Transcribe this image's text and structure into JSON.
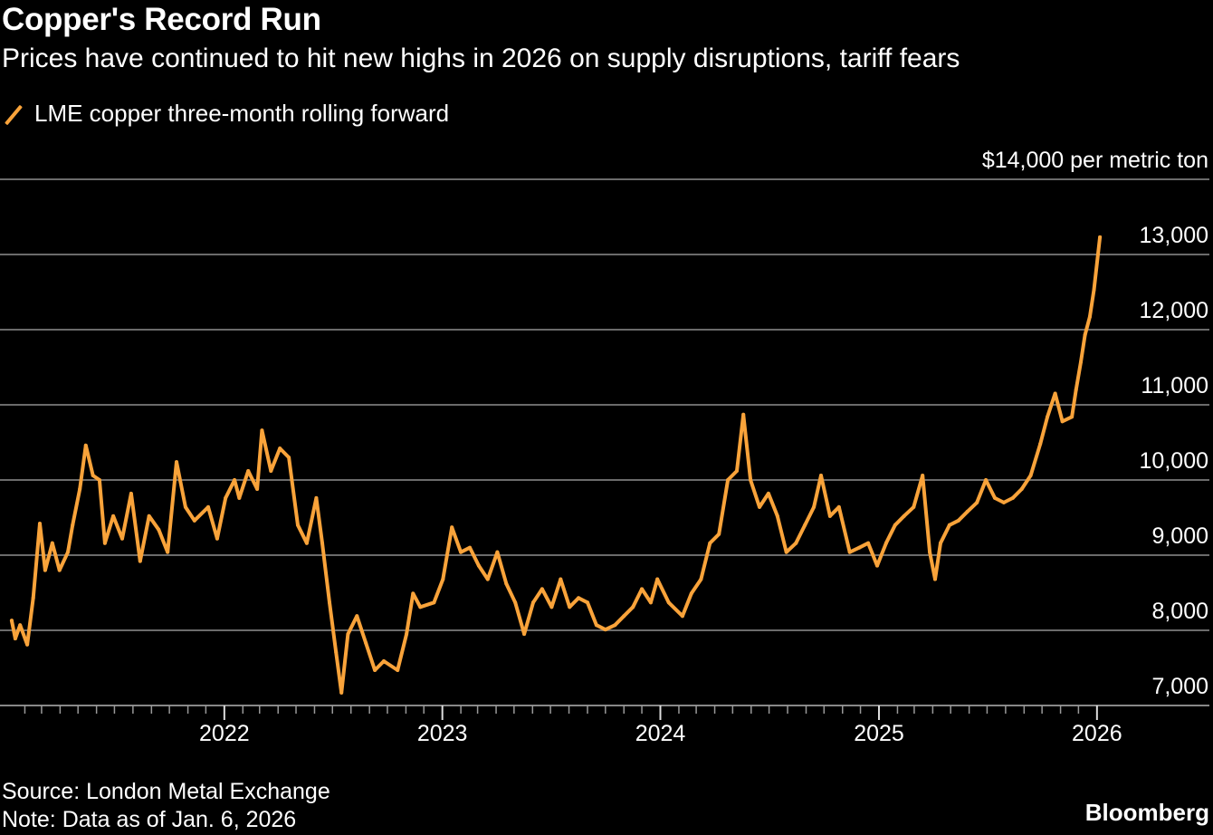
{
  "header": {
    "title": "Copper's Record Run",
    "subtitle": "Prices have continued to hit new highs in 2026 on supply disruptions, tariff fears"
  },
  "footer": {
    "source": "Source: London Metal Exchange",
    "note": "Note: Data as of Jan. 6, 2026",
    "brand": "Bloomberg"
  },
  "chart_data": {
    "type": "line",
    "title": "Copper's Record Run",
    "subtitle": "Prices have continued to hit new highs in 2026 on supply disruptions, tariff fears",
    "ylabel": "$14,000 per metric ton",
    "ylim": [
      7000,
      14000
    ],
    "yticks": [
      7000,
      8000,
      9000,
      10000,
      11000,
      12000,
      13000,
      14000
    ],
    "ytick_labels": [
      "7,000",
      "8,000",
      "9,000",
      "10,000",
      "11,000",
      "12,000",
      "13,000",
      "$14,000 per metric ton"
    ],
    "xlim": [
      "2021-01-01",
      "2026-02-15"
    ],
    "xticks": [
      "2022-01-01",
      "2023-01-01",
      "2024-01-01",
      "2025-01-01",
      "2026-01-01"
    ],
    "xtick_labels": [
      "2022",
      "2023",
      "2024",
      "2025",
      "2026"
    ],
    "minor_ticks": "monthly",
    "grid": true,
    "legend": "top-left",
    "colors": {
      "line": "#f9a33a",
      "grid": "#6b6b6b",
      "background": "#000000",
      "text": "#ffffff"
    },
    "series": [
      {
        "name": "LME copper three-month rolling forward",
        "x": [
          "2021-01-10",
          "2021-01-16",
          "2021-01-24",
          "2021-02-05",
          "2021-02-15",
          "2021-02-26",
          "2021-03-07",
          "2021-03-19",
          "2021-03-31",
          "2021-04-14",
          "2021-04-22",
          "2021-05-04",
          "2021-05-14",
          "2021-05-26",
          "2021-06-06",
          "2021-06-15",
          "2021-06-29",
          "2021-07-14",
          "2021-07-29",
          "2021-08-13",
          "2021-08-28",
          "2021-09-13",
          "2021-09-28",
          "2021-10-13",
          "2021-10-28",
          "2021-11-12",
          "2021-12-05",
          "2021-12-20",
          "2022-01-03",
          "2022-01-18",
          "2022-01-26",
          "2022-02-10",
          "2022-02-25",
          "2022-03-05",
          "2022-03-20",
          "2022-04-04",
          "2022-04-19",
          "2022-05-04",
          "2022-05-19",
          "2022-06-04",
          "2022-06-14",
          "2022-06-26",
          "2022-07-07",
          "2022-07-16",
          "2022-07-27",
          "2022-08-11",
          "2022-08-26",
          "2022-09-10",
          "2022-09-25",
          "2022-10-18",
          "2022-11-02",
          "2022-11-13",
          "2022-11-25",
          "2022-12-18",
          "2023-01-02",
          "2023-01-17",
          "2023-02-01",
          "2023-02-16",
          "2023-03-03",
          "2023-03-18",
          "2023-04-03",
          "2023-04-18",
          "2023-05-03",
          "2023-05-18",
          "2023-06-02",
          "2023-06-17",
          "2023-07-03",
          "2023-07-18",
          "2023-08-02",
          "2023-08-17",
          "2023-09-01",
          "2023-09-16",
          "2023-10-01",
          "2023-10-17",
          "2023-11-01",
          "2023-11-16",
          "2023-12-01",
          "2023-12-16",
          "2023-12-27",
          "2024-01-15",
          "2024-02-07",
          "2024-02-22",
          "2024-03-09",
          "2024-03-24",
          "2024-04-08",
          "2024-04-23",
          "2024-05-08",
          "2024-05-19",
          "2024-05-31",
          "2024-06-15",
          "2024-06-30",
          "2024-07-15",
          "2024-07-30",
          "2024-08-15",
          "2024-08-30",
          "2024-09-14",
          "2024-09-26",
          "2024-10-11",
          "2024-10-26",
          "2024-11-13",
          "2024-11-29",
          "2024-12-14",
          "2024-12-29",
          "2025-01-13",
          "2025-01-28",
          "2025-02-12",
          "2025-02-28",
          "2025-03-15",
          "2025-03-27",
          "2025-04-05",
          "2025-04-14",
          "2025-04-29",
          "2025-05-14",
          "2025-05-29",
          "2025-06-14",
          "2025-06-29",
          "2025-07-14",
          "2025-07-29",
          "2025-08-13",
          "2025-08-28",
          "2025-09-12",
          "2025-09-28",
          "2025-10-10",
          "2025-10-23",
          "2025-11-04",
          "2025-11-20",
          "2025-11-27",
          "2025-12-05",
          "2025-12-12",
          "2025-12-20",
          "2025-12-27",
          "2026-01-06"
        ],
        "values": [
          8130,
          7890,
          8070,
          7810,
          8430,
          9420,
          8800,
          9160,
          8800,
          9040,
          9400,
          9880,
          10460,
          10060,
          10000,
          9160,
          9520,
          9220,
          9820,
          8920,
          9520,
          9340,
          9040,
          10240,
          9640,
          9460,
          9640,
          9220,
          9760,
          10000,
          9760,
          10120,
          9880,
          10660,
          10120,
          10420,
          10300,
          9400,
          9160,
          9760,
          9160,
          8370,
          7710,
          7170,
          7950,
          8190,
          7830,
          7470,
          7590,
          7470,
          7950,
          8490,
          8310,
          8370,
          8680,
          9370,
          9040,
          9100,
          8860,
          8680,
          9040,
          8620,
          8370,
          7950,
          8370,
          8550,
          8310,
          8680,
          8310,
          8430,
          8370,
          8070,
          8010,
          8070,
          8190,
          8310,
          8550,
          8370,
          8680,
          8370,
          8190,
          8490,
          8680,
          9160,
          9280,
          10000,
          10120,
          10870,
          10000,
          9640,
          9820,
          9520,
          9040,
          9160,
          9400,
          9640,
          10060,
          9520,
          9640,
          9040,
          9100,
          9160,
          8860,
          9160,
          9400,
          9520,
          9640,
          10060,
          9040,
          8680,
          9160,
          9400,
          9460,
          9580,
          9700,
          10000,
          9760,
          9700,
          9760,
          9880,
          10060,
          10480,
          10840,
          11150,
          10780,
          10840,
          11200,
          11570,
          11930,
          12170,
          12530,
          13230
        ]
      }
    ]
  }
}
